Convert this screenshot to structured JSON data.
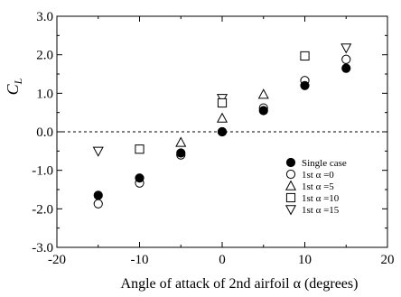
{
  "chart_data": {
    "type": "scatter",
    "xlabel": "Angle of attack of 2nd airfoil  α (degrees)",
    "ylabel_main": "C",
    "ylabel_sub": "L",
    "xlim": [
      -20,
      20
    ],
    "ylim": [
      -3.0,
      3.0
    ],
    "xticks": [
      -20,
      -10,
      0,
      10,
      20
    ],
    "yticks": [
      -3.0,
      -2.0,
      -1.0,
      0.0,
      1.0,
      2.0,
      3.0
    ],
    "xtick_labels": [
      "-20",
      "-10",
      "0",
      "10",
      "20"
    ],
    "ytick_labels": [
      "-3.0",
      "-2.0",
      "-1.0",
      "0.0",
      "1.0",
      "2.0",
      "3.0"
    ],
    "reference_line": {
      "y": 0.0,
      "style": "dashed"
    },
    "grid": false,
    "legend_position": "bottom-right",
    "series": [
      {
        "name": "Single case",
        "marker": "filled-circle",
        "x": [
          -15,
          -10,
          -5,
          0,
          5,
          10,
          15
        ],
        "y": [
          -1.65,
          -1.2,
          -0.55,
          0.0,
          0.55,
          1.2,
          1.65
        ]
      },
      {
        "name": "1st  α =0",
        "marker": "open-circle",
        "x": [
          -15,
          -10,
          -5,
          0,
          5,
          10,
          15
        ],
        "y": [
          -1.87,
          -1.33,
          -0.6,
          0.0,
          0.62,
          1.33,
          1.88
        ]
      },
      {
        "name": "1st  α =5",
        "marker": "triangle-up",
        "x": [
          -5,
          0,
          5
        ],
        "y": [
          -0.28,
          0.35,
          0.97
        ]
      },
      {
        "name": "1st  α =10",
        "marker": "square",
        "x": [
          -10,
          0,
          10
        ],
        "y": [
          -0.45,
          0.75,
          1.97
        ]
      },
      {
        "name": "1st  α =15",
        "marker": "triangle-down",
        "x": [
          -15,
          0,
          15
        ],
        "y": [
          -0.5,
          0.87,
          2.18
        ]
      }
    ]
  }
}
